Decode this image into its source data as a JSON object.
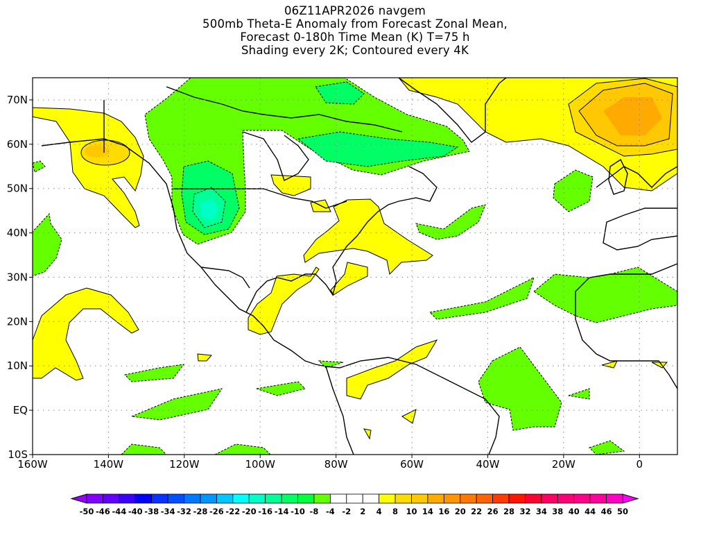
{
  "title": {
    "line1": "06Z11APR2026 navgem",
    "line2": "500mb Theta-E Anomaly from Forecast Zonal Mean,",
    "line3": "Forecast 0-180h Time Mean (K) T=75 h",
    "line4": "Shading every 2K; Contoured every 4K"
  },
  "chart_data": {
    "type": "heatmap",
    "subtype": "geographic-contour-map",
    "variable": "500mb Theta-E Anomaly (K)",
    "lon_range": [
      -160,
      10
    ],
    "lat_range": [
      -10,
      75
    ],
    "grid": true,
    "x_ticks": [
      "160W",
      "140W",
      "120W",
      "100W",
      "80W",
      "60W",
      "40W",
      "20W",
      "0"
    ],
    "y_ticks": [
      "70N",
      "60N",
      "50N",
      "40N",
      "30N",
      "20N",
      "10N",
      "EQ",
      "10S"
    ],
    "colorbar": {
      "labels": [
        "-50",
        "-46",
        "-44",
        "-40",
        "-38",
        "-34",
        "-32",
        "-28",
        "-26",
        "-22",
        "-20",
        "-16",
        "-14",
        "-10",
        "-8",
        "-4",
        "-2",
        "2",
        "4",
        "8",
        "10",
        "14",
        "16",
        "20",
        "22",
        "26",
        "28",
        "32",
        "34",
        "38",
        "40",
        "44",
        "46",
        "50"
      ],
      "colors": [
        "#8200ff",
        "#6400ff",
        "#3c00ff",
        "#0000ff",
        "#0a32ff",
        "#0050ff",
        "#0078ff",
        "#0096ff",
        "#00c8ff",
        "#00ffff",
        "#00ffc8",
        "#00ff96",
        "#00ff64",
        "#00ff3c",
        "#64ff00",
        "#ffffff",
        "#ffffff",
        "#ffffff",
        "#ffff00",
        "#ffdc00",
        "#ffc800",
        "#ffaa00",
        "#ff9600",
        "#ff7800",
        "#ff6400",
        "#ff3c00",
        "#ff1400",
        "#ff0032",
        "#ff0064",
        "#ff0078",
        "#ff008c",
        "#ff00a0",
        "#ff00c8"
      ],
      "under_color": "#9600ff",
      "over_color": "#ff00ff"
    },
    "features": [
      {
        "name": "Negative anomaly over western US / Canada",
        "min_approx": -16
      },
      {
        "name": "Negative anomaly over eastern Canada",
        "min_approx": -12
      },
      {
        "name": "Positive anomaly over Gulf of Alaska",
        "max_approx": 10
      },
      {
        "name": "Positive anomaly over Scandinavia / North Atlantic",
        "max_approx": 14
      },
      {
        "name": "Positive anomaly along US East Coast",
        "max_approx": 6
      }
    ]
  }
}
